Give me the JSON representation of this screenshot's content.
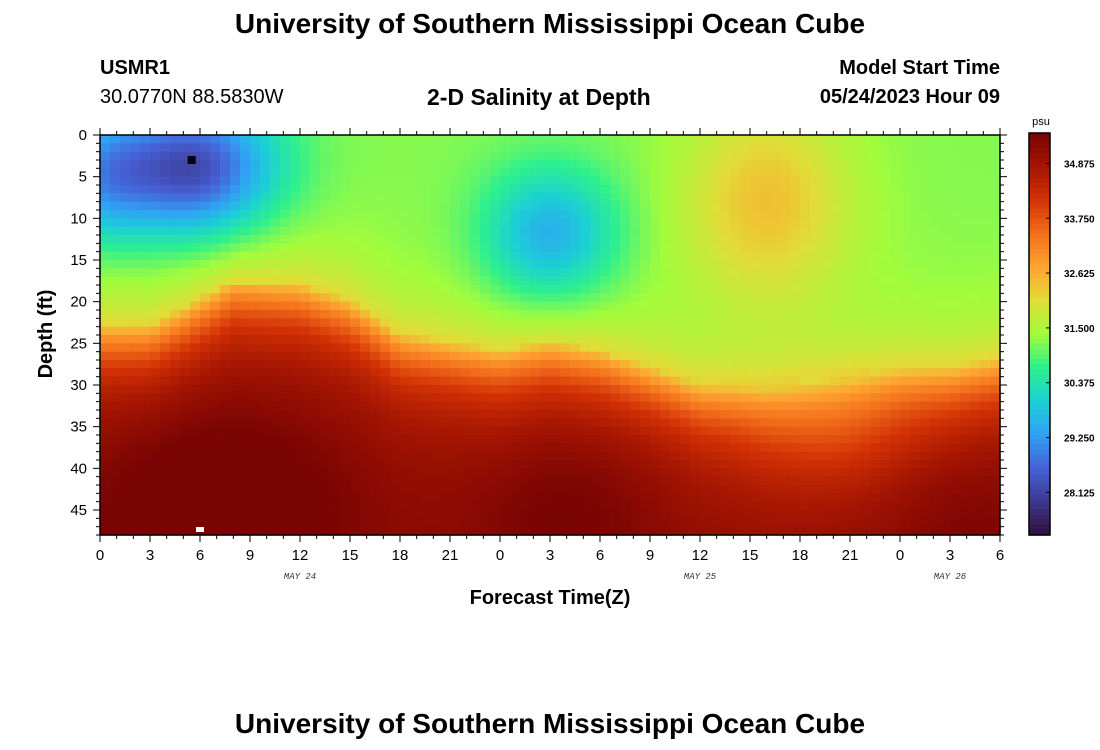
{
  "header": {
    "title": "University of Southern Mississippi Ocean Cube",
    "station_id": "USMR1",
    "coordinates": "30.0770N  88.5830W",
    "subtitle": "2-D Salinity at Depth",
    "model_start_label": "Model Start Time",
    "model_start_value": "05/24/2023 Hour 09"
  },
  "footer": {
    "title": "University of Southern Mississippi Ocean Cube"
  },
  "colors": {
    "scale": [
      "#30123b",
      "#3e378f",
      "#4662d7",
      "#30a1f5",
      "#1bd0d5",
      "#2ef08d",
      "#a2fc3c",
      "#e1dd37",
      "#fea331",
      "#f36f1b",
      "#d23105",
      "#a51502",
      "#7a0403"
    ],
    "marker_dark": "#000000",
    "marker_light": "#ffffff"
  },
  "chart_data": {
    "type": "heatmap",
    "title": "2-D Salinity at Depth",
    "xlabel": "Forecast Time(Z)",
    "ylabel": "Depth (ft)",
    "x_range_hours": [
      0,
      54
    ],
    "y_range_ft": [
      0,
      48
    ],
    "x_tick_labels": [
      "0",
      "3",
      "6",
      "9",
      "12",
      "15",
      "18",
      "21",
      "0",
      "3",
      "6",
      "9",
      "12",
      "15",
      "18",
      "21",
      "0",
      "3",
      "6"
    ],
    "y_tick_labels": [
      "0",
      "5",
      "10",
      "15",
      "20",
      "25",
      "30",
      "35",
      "40",
      "45"
    ],
    "y_tick_values": [
      0,
      5,
      10,
      15,
      20,
      25,
      30,
      35,
      40,
      45
    ],
    "date_labels": [
      {
        "text": "MAY 24",
        "hour": 12
      },
      {
        "text": "MAY 25",
        "hour": 36
      },
      {
        "text": "MAY 26",
        "hour": 51
      }
    ],
    "colorbar": {
      "unit": "psu",
      "min": 27.25,
      "max": 35.5,
      "ticks": [
        "34.875",
        "33.750",
        "32.625",
        "31.500",
        "30.375",
        "29.250",
        "28.125"
      ],
      "tick_values": [
        34.875,
        33.75,
        32.625,
        31.5,
        30.375,
        29.25,
        28.125
      ]
    },
    "interface_depth_ft": [
      {
        "hour": 0,
        "depth": 23
      },
      {
        "hour": 3,
        "depth": 23
      },
      {
        "hour": 5,
        "depth": 21
      },
      {
        "hour": 8,
        "depth": 17.5
      },
      {
        "hour": 12,
        "depth": 18
      },
      {
        "hour": 15,
        "depth": 20
      },
      {
        "hour": 18,
        "depth": 24
      },
      {
        "hour": 21,
        "depth": 25
      },
      {
        "hour": 24,
        "depth": 26
      },
      {
        "hour": 27,
        "depth": 25
      },
      {
        "hour": 30,
        "depth": 26
      },
      {
        "hour": 33,
        "depth": 28
      },
      {
        "hour": 36,
        "depth": 30
      },
      {
        "hour": 40,
        "depth": 30
      },
      {
        "hour": 44,
        "depth": 29
      },
      {
        "hour": 48,
        "depth": 28
      },
      {
        "hour": 51,
        "depth": 28
      },
      {
        "hour": 54,
        "depth": 27
      }
    ],
    "surface_anomalies": [
      {
        "hour": 5.5,
        "depth": 4,
        "sigma_h": 5,
        "sigma_d": 8,
        "delta": -3.0
      },
      {
        "hour": 27,
        "depth": 12,
        "sigma_h": 4,
        "sigma_d": 8,
        "delta": -1.7
      },
      {
        "hour": 40,
        "depth": 8,
        "sigma_h": 5,
        "sigma_d": 12,
        "delta": 1.2
      },
      {
        "hour": 0,
        "depth": 5,
        "sigma_h": 3,
        "sigma_d": 8,
        "delta": -1.4
      }
    ],
    "bottom_anomalies": [
      {
        "hour": 7,
        "depth": 46,
        "sigma_h": 8,
        "sigma_d": 14,
        "delta": 0.9
      },
      {
        "hour": 28,
        "depth": 45,
        "sigma_h": 6,
        "sigma_d": 10,
        "delta": 0.5
      },
      {
        "hour": 44,
        "depth": 36,
        "sigma_h": 6,
        "sigma_d": 8,
        "delta": -0.6
      },
      {
        "hour": 52,
        "depth": 46,
        "sigma_h": 5,
        "sigma_d": 10,
        "delta": 0.4
      }
    ],
    "markers": [
      {
        "hour": 5.5,
        "depth": 3,
        "kind": "dark"
      },
      {
        "hour": 6,
        "depth": 48,
        "kind": "light"
      }
    ]
  }
}
